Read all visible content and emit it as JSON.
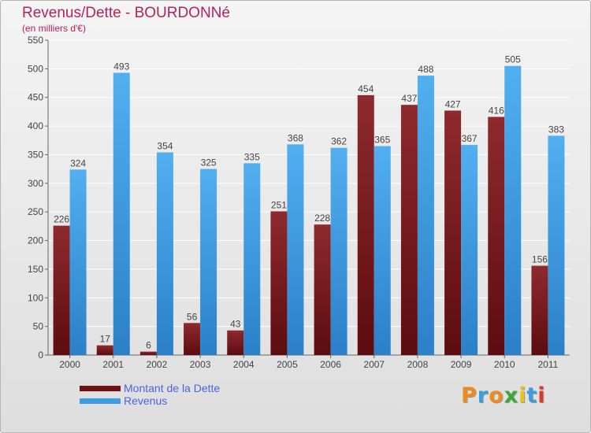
{
  "title": "Revenus/Dette - BOURDONNé",
  "subtitle": "(en milliers d'€)",
  "logo": {
    "letters": [
      "P",
      "r",
      "o",
      "x",
      "i",
      "t",
      "i"
    ],
    "colors": [
      "#f08a1c",
      "#3a9de0",
      "#f08a1c",
      "#38a838",
      "#e6c21a",
      "#3a9de0",
      "#d93a2a"
    ]
  },
  "chart_data": {
    "type": "bar",
    "categories": [
      "2000",
      "2001",
      "2002",
      "2003",
      "2004",
      "2005",
      "2006",
      "2007",
      "2008",
      "2009",
      "2010",
      "2011"
    ],
    "series": [
      {
        "name": "Montant de la Dette",
        "color": "#7a1b1f",
        "values": [
          226,
          17,
          6,
          56,
          43,
          251,
          228,
          454,
          437,
          427,
          416,
          156
        ]
      },
      {
        "name": "Revenus",
        "color": "#3d9ce2",
        "values": [
          324,
          493,
          354,
          325,
          335,
          368,
          362,
          365,
          488,
          367,
          505,
          383
        ]
      }
    ],
    "ylim": [
      0,
      550
    ],
    "yticks": [
      0,
      50,
      100,
      150,
      200,
      250,
      300,
      350,
      400,
      450,
      500,
      550
    ],
    "grid": true,
    "legend_position": "bottom-left"
  }
}
